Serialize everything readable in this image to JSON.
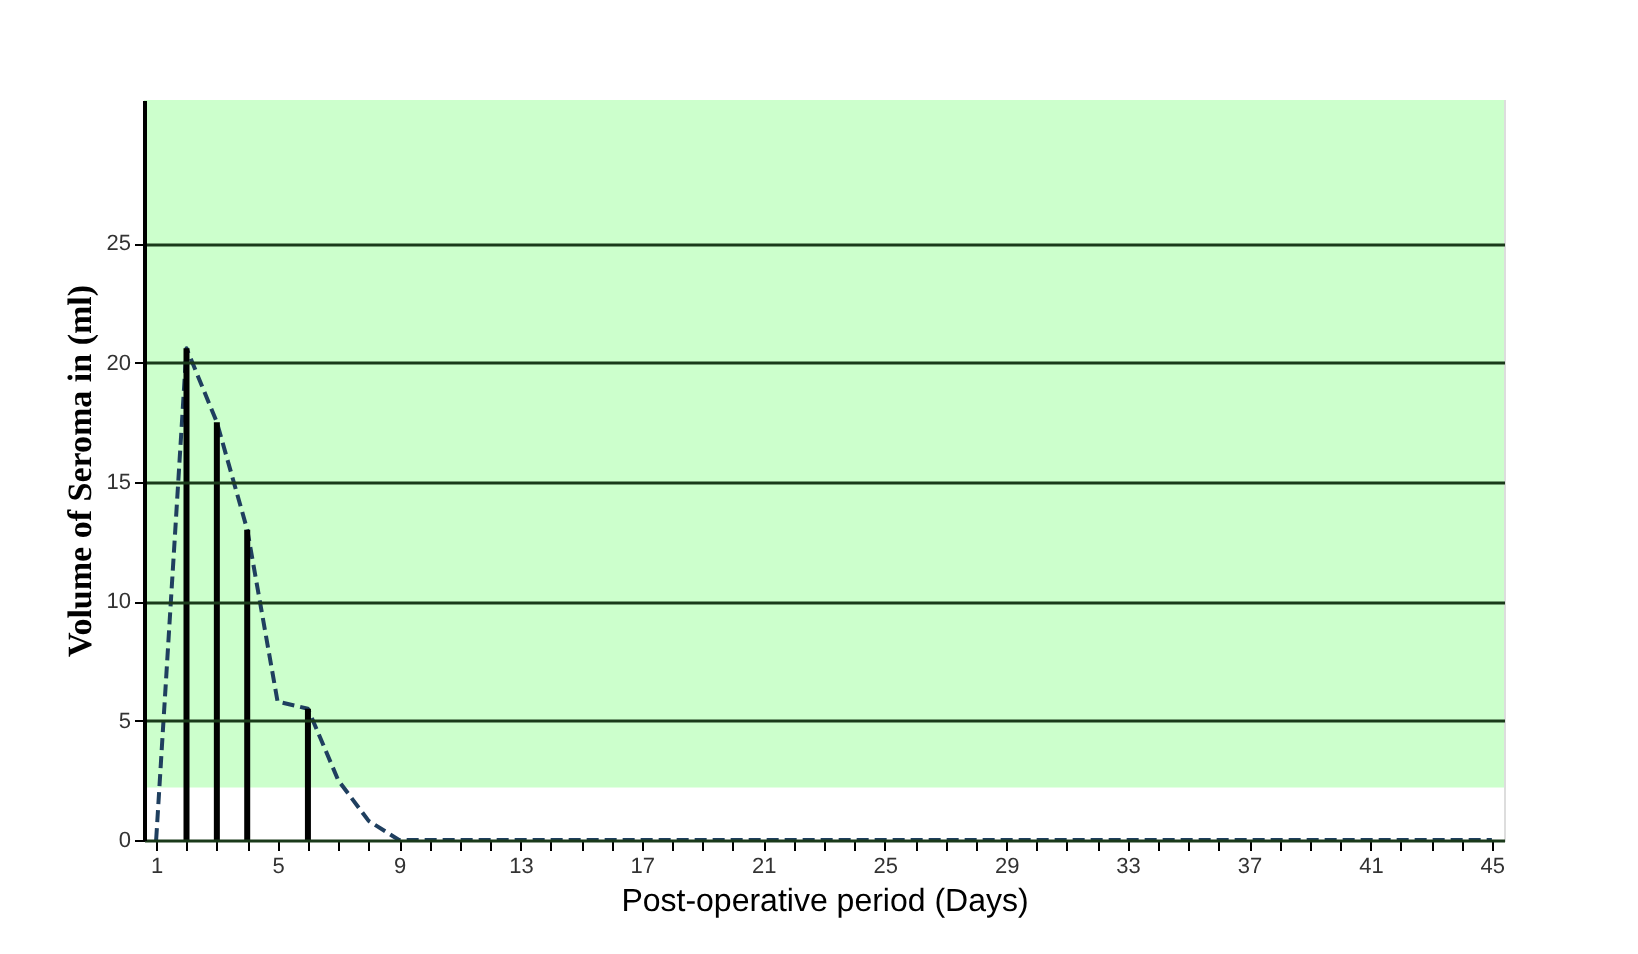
{
  "chart_data": {
    "type": "line",
    "xlabel": "Post-operative period (Days)",
    "ylabel": "Volume of Seroma in (ml)",
    "xlim": [
      0.6,
      45.4
    ],
    "ylim": [
      0,
      31
    ],
    "xticks": [
      1,
      {
        "value": 2,
        "label": null
      },
      {
        "value": 3,
        "label": null
      },
      {
        "value": 4,
        "label": null
      },
      5,
      {
        "value": 6,
        "label": null
      },
      {
        "value": 7,
        "label": null
      },
      {
        "value": 8,
        "label": null
      },
      9,
      {
        "value": 10,
        "label": null
      },
      {
        "value": 11,
        "label": null
      },
      {
        "value": 12,
        "label": null
      },
      13,
      {
        "value": 14,
        "label": null
      },
      {
        "value": 15,
        "label": null
      },
      {
        "value": 16,
        "label": null
      },
      17,
      {
        "value": 18,
        "label": null
      },
      {
        "value": 19,
        "label": null
      },
      {
        "value": 20,
        "label": null
      },
      21,
      {
        "value": 22,
        "label": null
      },
      {
        "value": 23,
        "label": null
      },
      {
        "value": 24,
        "label": null
      },
      25,
      {
        "value": 26,
        "label": null
      },
      {
        "value": 27,
        "label": null
      },
      {
        "value": 28,
        "label": null
      },
      29,
      {
        "value": 30,
        "label": null
      },
      {
        "value": 31,
        "label": null
      },
      {
        "value": 32,
        "label": null
      },
      33,
      {
        "value": 34,
        "label": null
      },
      {
        "value": 35,
        "label": null
      },
      {
        "value": 36,
        "label": null
      },
      37,
      {
        "value": 38,
        "label": null
      },
      {
        "value": 39,
        "label": null
      },
      {
        "value": 40,
        "label": null
      },
      41,
      {
        "value": 42,
        "label": null
      },
      {
        "value": 43,
        "label": null
      },
      {
        "value": 44,
        "label": null
      },
      45
    ],
    "yticks": [
      0,
      5,
      10,
      15,
      20,
      25
    ],
    "grid": "y",
    "line_style": "dashed",
    "marker": "none",
    "bands": [
      {
        "axis": "y",
        "from": 2.2,
        "to": 31,
        "color": "#ccffcc"
      }
    ],
    "series": [
      {
        "color": "#1f3f5f",
        "x": [
          1,
          2,
          3,
          4,
          5,
          6,
          7,
          8,
          9,
          10,
          15,
          20,
          25,
          30,
          35,
          40,
          45
        ],
        "values": [
          0,
          20.6,
          17.5,
          13,
          5.8,
          5.5,
          2.5,
          0.8,
          0,
          0,
          0,
          0,
          0,
          0,
          0,
          0,
          0
        ]
      },
      {
        "type": "bar",
        "color": "#000000",
        "x": [
          2,
          3,
          4,
          6
        ],
        "values": [
          20.6,
          17.5,
          13,
          5.5
        ]
      }
    ]
  }
}
